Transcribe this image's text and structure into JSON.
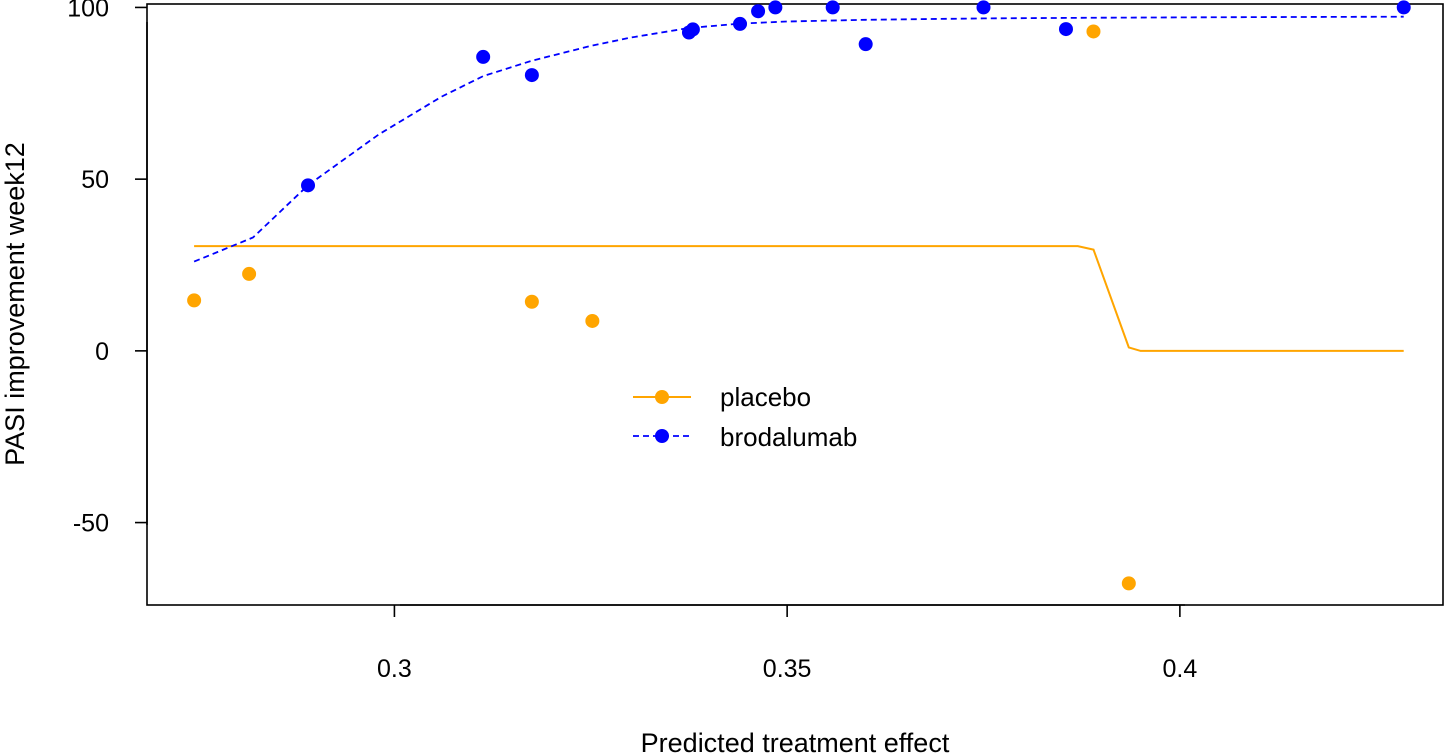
{
  "chart_data": {
    "type": "scatter",
    "xlabel": "Predicted treatment effect",
    "ylabel": "PASI improvement week12",
    "xlim": [
      0.2685,
      0.4335
    ],
    "ylim": [
      -74,
      101
    ],
    "xticks": [
      0.3,
      0.35,
      0.4
    ],
    "xtick_labels": [
      "0.3",
      "0.35",
      "0.4"
    ],
    "yticks": [
      -50,
      0,
      50,
      100
    ],
    "ytick_labels": [
      "-50",
      "0",
      "50",
      "100"
    ],
    "grid": false,
    "legend": {
      "position": "center",
      "entries": [
        "placebo",
        "brodalumab"
      ]
    },
    "series": [
      {
        "name": "placebo",
        "color": "#FFA500",
        "line_style": "solid",
        "points": [
          {
            "x": 0.2745,
            "y": 14.7
          },
          {
            "x": 0.2815,
            "y": 22.4
          },
          {
            "x": 0.3175,
            "y": 14.3
          },
          {
            "x": 0.3252,
            "y": 8.7
          },
          {
            "x": 0.389,
            "y": 93.0
          },
          {
            "x": 0.3935,
            "y": -67.7
          }
        ],
        "curve": [
          {
            "x": 0.2745,
            "y": 30.5
          },
          {
            "x": 0.3,
            "y": 30.5
          },
          {
            "x": 0.35,
            "y": 30.5
          },
          {
            "x": 0.387,
            "y": 30.5
          },
          {
            "x": 0.389,
            "y": 29.5
          },
          {
            "x": 0.3935,
            "y": 1.0
          },
          {
            "x": 0.395,
            "y": 0.0
          },
          {
            "x": 0.42,
            "y": 0.0
          },
          {
            "x": 0.4285,
            "y": 0.0
          }
        ]
      },
      {
        "name": "brodalumab",
        "color": "#0000FF",
        "line_style": "dashed",
        "points": [
          {
            "x": 0.289,
            "y": 48.2
          },
          {
            "x": 0.3113,
            "y": 85.6
          },
          {
            "x": 0.3175,
            "y": 80.3
          },
          {
            "x": 0.3375,
            "y": 92.7
          },
          {
            "x": 0.338,
            "y": 93.6
          },
          {
            "x": 0.344,
            "y": 95.2
          },
          {
            "x": 0.3463,
            "y": 98.9
          },
          {
            "x": 0.3485,
            "y": 100.0
          },
          {
            "x": 0.3558,
            "y": 100.0
          },
          {
            "x": 0.36,
            "y": 89.3
          },
          {
            "x": 0.375,
            "y": 100.0
          },
          {
            "x": 0.3855,
            "y": 93.7
          },
          {
            "x": 0.4285,
            "y": 100.0
          }
        ],
        "curve": [
          {
            "x": 0.2745,
            "y": 26.0
          },
          {
            "x": 0.282,
            "y": 33.0
          },
          {
            "x": 0.289,
            "y": 48.2
          },
          {
            "x": 0.298,
            "y": 63.0
          },
          {
            "x": 0.306,
            "y": 74.0
          },
          {
            "x": 0.3113,
            "y": 80.0
          },
          {
            "x": 0.3175,
            "y": 84.5
          },
          {
            "x": 0.325,
            "y": 88.8
          },
          {
            "x": 0.33,
            "y": 91.2
          },
          {
            "x": 0.3375,
            "y": 94.0
          },
          {
            "x": 0.344,
            "y": 95.3
          },
          {
            "x": 0.35,
            "y": 95.9
          },
          {
            "x": 0.36,
            "y": 96.4
          },
          {
            "x": 0.375,
            "y": 96.8
          },
          {
            "x": 0.39,
            "y": 97.0
          },
          {
            "x": 0.41,
            "y": 97.2
          },
          {
            "x": 0.4285,
            "y": 97.3
          }
        ]
      }
    ]
  }
}
